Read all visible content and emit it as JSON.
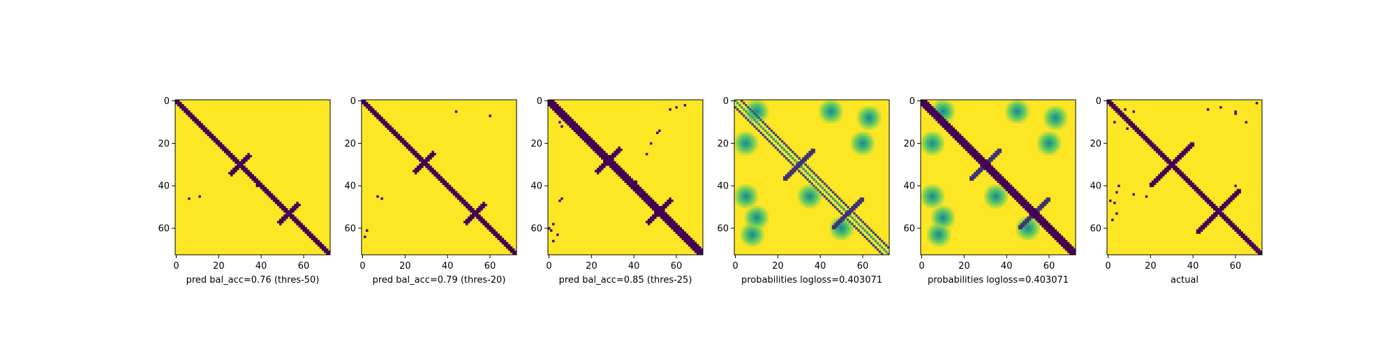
{
  "colors": {
    "background": "#ffffff",
    "low": "#440154",
    "mid": "#21918c",
    "high": "#fde725",
    "axis": "#000000"
  },
  "shared_axes": {
    "x_ticks": [
      0,
      20,
      40,
      60
    ],
    "y_ticks": [
      0,
      20,
      40,
      60
    ],
    "x_range": [
      0,
      73
    ],
    "y_range": [
      0,
      73
    ],
    "y_inverted": true
  },
  "chart_data": [
    {
      "type": "heatmap",
      "xlabel": "pred bal_acc=0.76 (thres-50)",
      "colormap": "viridis",
      "binary": true,
      "pattern": {
        "diagonal_halfwidth": 1.6,
        "cross_centers": [
          [
            30,
            30
          ],
          [
            53,
            53
          ]
        ],
        "cross_arm_length": 9,
        "extra_points": [
          [
            46,
            6
          ],
          [
            45,
            11
          ],
          [
            40,
            38
          ]
        ]
      }
    },
    {
      "type": "heatmap",
      "xlabel": "pred bal_acc=0.79 (thres-20)",
      "colormap": "viridis",
      "binary": true,
      "pattern": {
        "diagonal_halfwidth": 1.9,
        "cross_centers": [
          [
            29,
            29
          ],
          [
            53,
            53
          ]
        ],
        "cross_arm_length": 9,
        "extra_points": [
          [
            45,
            7
          ],
          [
            46,
            9
          ],
          [
            61,
            2
          ],
          [
            64,
            1
          ],
          [
            5,
            44
          ],
          [
            7,
            60
          ]
        ]
      }
    },
    {
      "type": "heatmap",
      "xlabel": "pred bal_acc=0.85 (thres-25)",
      "colormap": "viridis",
      "binary": true,
      "pattern": {
        "diagonal_halfwidth": 2.2,
        "cross_centers": [
          [
            28,
            28
          ],
          [
            52,
            52
          ]
        ],
        "cross_arm_length": 11,
        "extra_points": [
          [
            46,
            6
          ],
          [
            47,
            5
          ],
          [
            58,
            2
          ],
          [
            60,
            0
          ],
          [
            61,
            1
          ],
          [
            63,
            4
          ],
          [
            66,
            2
          ],
          [
            4,
            57
          ],
          [
            3,
            60
          ],
          [
            2,
            64
          ],
          [
            14,
            52
          ],
          [
            15,
            51
          ],
          [
            20,
            48
          ],
          [
            25,
            46
          ],
          [
            10,
            5
          ],
          [
            12,
            6
          ],
          [
            38,
            41
          ]
        ]
      }
    },
    {
      "type": "heatmap",
      "xlabel": "probabilities logloss=0.403071",
      "colormap": "viridis",
      "binary": false,
      "pattern": {
        "diagonal_offsets": [
          -3,
          3
        ],
        "cross_centers": [
          [
            30,
            30
          ],
          [
            53,
            53
          ]
        ],
        "cross_arm_length": 14,
        "blobs": [
          [
            5,
            10
          ],
          [
            5,
            45
          ],
          [
            20,
            5
          ],
          [
            20,
            60
          ],
          [
            45,
            5
          ],
          [
            45,
            35
          ],
          [
            55,
            10
          ],
          [
            60,
            50
          ],
          [
            8,
            63
          ],
          [
            63,
            8
          ]
        ]
      }
    },
    {
      "type": "heatmap",
      "xlabel": "probabilities logloss=0.403071",
      "colormap": "viridis",
      "binary": false,
      "pattern": {
        "diagonal_halfwidth": 2.5,
        "cross_centers": [
          [
            30,
            30
          ],
          [
            53,
            53
          ]
        ],
        "cross_arm_length": 14,
        "blobs": [
          [
            5,
            10
          ],
          [
            5,
            45
          ],
          [
            20,
            5
          ],
          [
            20,
            60
          ],
          [
            45,
            5
          ],
          [
            45,
            35
          ],
          [
            55,
            10
          ],
          [
            60,
            50
          ],
          [
            8,
            63
          ],
          [
            63,
            8
          ]
        ]
      }
    },
    {
      "type": "heatmap",
      "xlabel": "actual",
      "colormap": "viridis",
      "binary": true,
      "pattern": {
        "diagonal_halfwidth": 1.6,
        "cross_centers": [
          [
            30,
            30
          ],
          [
            52,
            52
          ]
        ],
        "cross_arm_length": 20,
        "extra_points": [
          [
            4,
            8
          ],
          [
            5,
            12
          ],
          [
            10,
            3
          ],
          [
            13,
            9
          ],
          [
            40,
            5
          ],
          [
            43,
            4
          ],
          [
            47,
            1
          ],
          [
            48,
            3
          ],
          [
            53,
            4
          ],
          [
            56,
            2
          ],
          [
            4,
            47
          ],
          [
            3,
            53
          ],
          [
            6,
            60
          ],
          [
            10,
            65
          ],
          [
            1,
            70
          ],
          [
            5,
            60
          ],
          [
            44,
            12
          ],
          [
            45,
            18
          ],
          [
            40,
            60
          ]
        ]
      }
    }
  ]
}
